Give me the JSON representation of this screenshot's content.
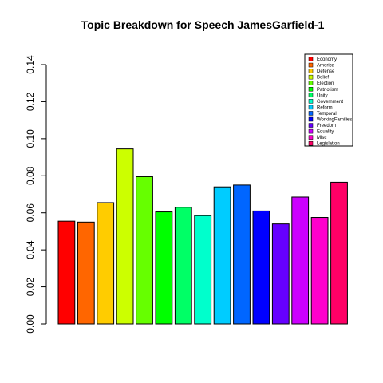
{
  "chart_data": {
    "type": "bar",
    "title": "Topic Breakdown for Speech JamesGarfield-1",
    "xlabel": "",
    "ylabel": "",
    "ylim": [
      0,
      0.14
    ],
    "yticks": [
      0.0,
      0.02,
      0.04,
      0.06,
      0.08,
      0.1,
      0.12,
      0.14
    ],
    "ytick_labels": [
      "0.00",
      "0.02",
      "0.04",
      "0.06",
      "0.08",
      "0.10",
      "0.12",
      "0.14"
    ],
    "grid": false,
    "legend_position": "top-right",
    "categories": [
      "Economy",
      "America",
      "Defense",
      "Belief",
      "Election",
      "Patriotism",
      "Unity",
      "Government",
      "Reform",
      "Temporal",
      "WorkingFamilies",
      "Freedom",
      "Equality",
      "Misc",
      "Legislation"
    ],
    "values": [
      0.0555,
      0.055,
      0.0655,
      0.0945,
      0.0795,
      0.0605,
      0.063,
      0.0585,
      0.074,
      0.075,
      0.061,
      0.054,
      0.0685,
      0.0575,
      0.0765
    ],
    "colors": [
      "#FF0000",
      "#FF6600",
      "#FFCC00",
      "#CCFF00",
      "#66FF00",
      "#00FF00",
      "#00FF66",
      "#00FFCC",
      "#00CCFF",
      "#0066FF",
      "#0000FF",
      "#6600FF",
      "#CC00FF",
      "#FF00CC",
      "#FF0066"
    ]
  }
}
